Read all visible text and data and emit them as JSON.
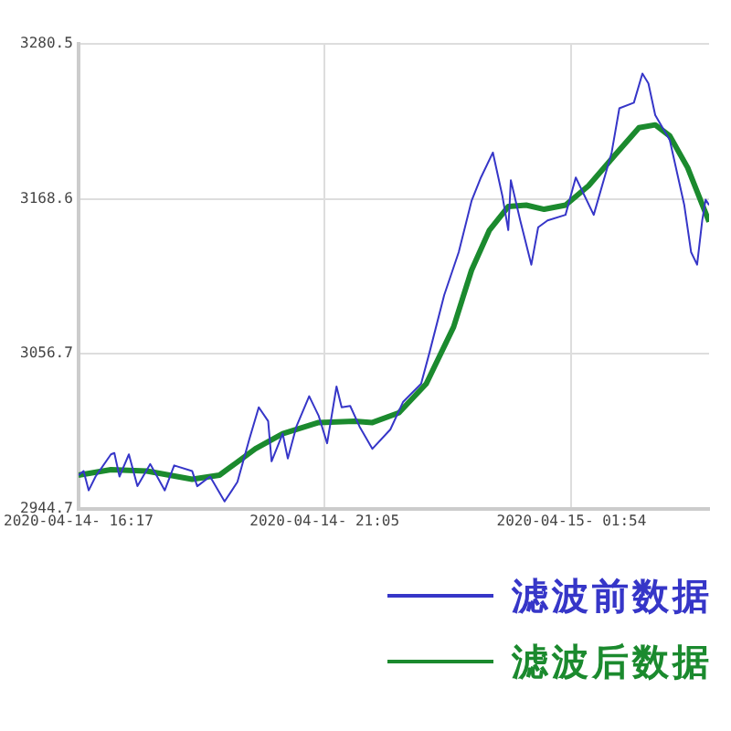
{
  "chart_data": {
    "type": "line",
    "xlim": [
      "2020-04-14T16:17",
      "2020-04-15T04:35"
    ],
    "ylim": [
      2944.7,
      3280.5
    ],
    "yticks": [
      2944.7,
      3056.7,
      3168.6,
      3280.5
    ],
    "xticks": [
      {
        "value": "2020-04-14T16:17",
        "label": "2020-04-14- 16:17"
      },
      {
        "value": "2020-04-14T21:05",
        "label": "2020-04-14- 21:05"
      },
      {
        "value": "2020-04-15T01:54",
        "label": "2020-04-15- 01:54"
      }
    ],
    "grid": true,
    "legend": "bottom right",
    "marker": "none",
    "line_style": "solid",
    "series": [
      {
        "name": "滤波前数据",
        "color": "#3636c8",
        "x": [
          "2020-04-14T16:17",
          "2020-04-14T16:23",
          "2020-04-14T16:29",
          "2020-04-14T16:37",
          "2020-04-14T16:55",
          "2020-04-14T16:59",
          "2020-04-14T17:05",
          "2020-04-14T17:16",
          "2020-04-14T17:26",
          "2020-04-14T17:41",
          "2020-04-14T17:58",
          "2020-04-14T18:09",
          "2020-04-14T18:30",
          "2020-04-14T18:36",
          "2020-04-14T18:51",
          "2020-04-14T19:08",
          "2020-04-14T19:23",
          "2020-04-14T19:37",
          "2020-04-14T19:48",
          "2020-04-14T19:59",
          "2020-04-14T20:03",
          "2020-04-14T20:16",
          "2020-04-14T20:22",
          "2020-04-14T20:32",
          "2020-04-14T20:47",
          "2020-04-14T20:58",
          "2020-04-14T21:08",
          "2020-04-14T21:19",
          "2020-04-14T21:25",
          "2020-04-14T21:35",
          "2020-04-14T21:46",
          "2020-04-14T22:01",
          "2020-04-14T22:22",
          "2020-04-14T22:37",
          "2020-04-14T22:58",
          "2020-04-14T23:08",
          "2020-04-14T23:25",
          "2020-04-14T23:42",
          "2020-04-14T23:57",
          "2020-04-15T00:08",
          "2020-04-15T00:22",
          "2020-04-15T00:33",
          "2020-04-15T00:40",
          "2020-04-15T00:43",
          "2020-04-15T00:54",
          "2020-04-15T01:07",
          "2020-04-15T01:15",
          "2020-04-15T01:26",
          "2020-04-15T01:47",
          "2020-04-15T01:59",
          "2020-04-15T02:20",
          "2020-04-15T02:41",
          "2020-04-15T02:50",
          "2020-04-15T03:07",
          "2020-04-15T03:17",
          "2020-04-15T03:24",
          "2020-04-15T03:32",
          "2020-04-15T03:49",
          "2020-04-15T04:06",
          "2020-04-15T04:14",
          "2020-04-15T04:21",
          "2020-04-15T04:27",
          "2020-04-15T04:31",
          "2020-04-15T04:35"
        ],
        "values": [
          2969,
          2972,
          2958,
          2968,
          2984,
          2985,
          2968,
          2984,
          2961,
          2977,
          2958,
          2976,
          2972,
          2961,
          2968,
          2950,
          2964,
          2995,
          3018,
          3008,
          2979,
          2999,
          2981,
          3004,
          3026,
          3012,
          2992,
          3033,
          3018,
          3019,
          3004,
          2988,
          3002,
          3022,
          3035,
          3058,
          3099,
          3130,
          3167,
          3184,
          3202,
          3171,
          3146,
          3182,
          3153,
          3121,
          3148,
          3153,
          3157,
          3184,
          3157,
          3202,
          3234,
          3238,
          3259,
          3252,
          3229,
          3211,
          3164,
          3130,
          3121,
          3153,
          3168,
          3164
        ]
      },
      {
        "name": "滤波后数据",
        "color": "#1b8a2e",
        "x": [
          "2020-04-14T16:17",
          "2020-04-14T16:55",
          "2020-04-14T17:37",
          "2020-04-14T18:30",
          "2020-04-14T19:02",
          "2020-04-14T19:44",
          "2020-04-14T20:16",
          "2020-04-14T20:58",
          "2020-04-14T21:40",
          "2020-04-14T22:01",
          "2020-04-14T22:32",
          "2020-04-14T23:04",
          "2020-04-14T23:36",
          "2020-04-14T23:57",
          "2020-04-15T00:18",
          "2020-04-15T00:40",
          "2020-04-15T01:01",
          "2020-04-15T01:22",
          "2020-04-15T01:47",
          "2020-04-15T02:14",
          "2020-04-15T02:46",
          "2020-04-15T03:13",
          "2020-04-15T03:32",
          "2020-04-15T03:49",
          "2020-04-15T04:10",
          "2020-04-15T04:35"
        ],
        "values": [
          2969,
          2973,
          2972,
          2966,
          2969,
          2988,
          2999,
          3007,
          3008,
          3007,
          3014,
          3035,
          3076,
          3117,
          3146,
          3163,
          3164,
          3161,
          3164,
          3178,
          3201,
          3220,
          3222,
          3214,
          3191,
          3152
        ]
      }
    ]
  }
}
